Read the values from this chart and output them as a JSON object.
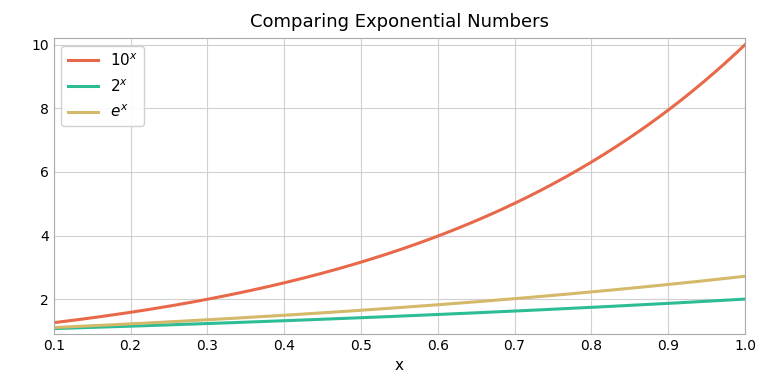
{
  "title": "Comparing Exponential Numbers",
  "xlabel": "x",
  "ylabel": "",
  "xmin": 0.1,
  "xmax": 1.0,
  "ymin": 0.9,
  "ymax": 10.2,
  "yticks": [
    2,
    4,
    6,
    8,
    10
  ],
  "xticks": [
    0.1,
    0.2,
    0.3,
    0.4,
    0.5,
    0.6,
    0.7,
    0.8,
    0.9,
    1.0
  ],
  "line_10x_color": "#E8694A",
  "line_2x_color": "#2DBD96",
  "line_ex_color": "#D4B96A",
  "line_width": 2.2,
  "background_color": "#ffffff",
  "axes_background": "#ffffff",
  "legend_labels": [
    "$10^x$",
    "$2^x$",
    "$e^x$"
  ],
  "title_fontsize": 13,
  "axis_label_fontsize": 11,
  "tick_fontsize": 10,
  "grid_color": "#d0d0d0",
  "figsize": [
    7.68,
    3.84
  ]
}
